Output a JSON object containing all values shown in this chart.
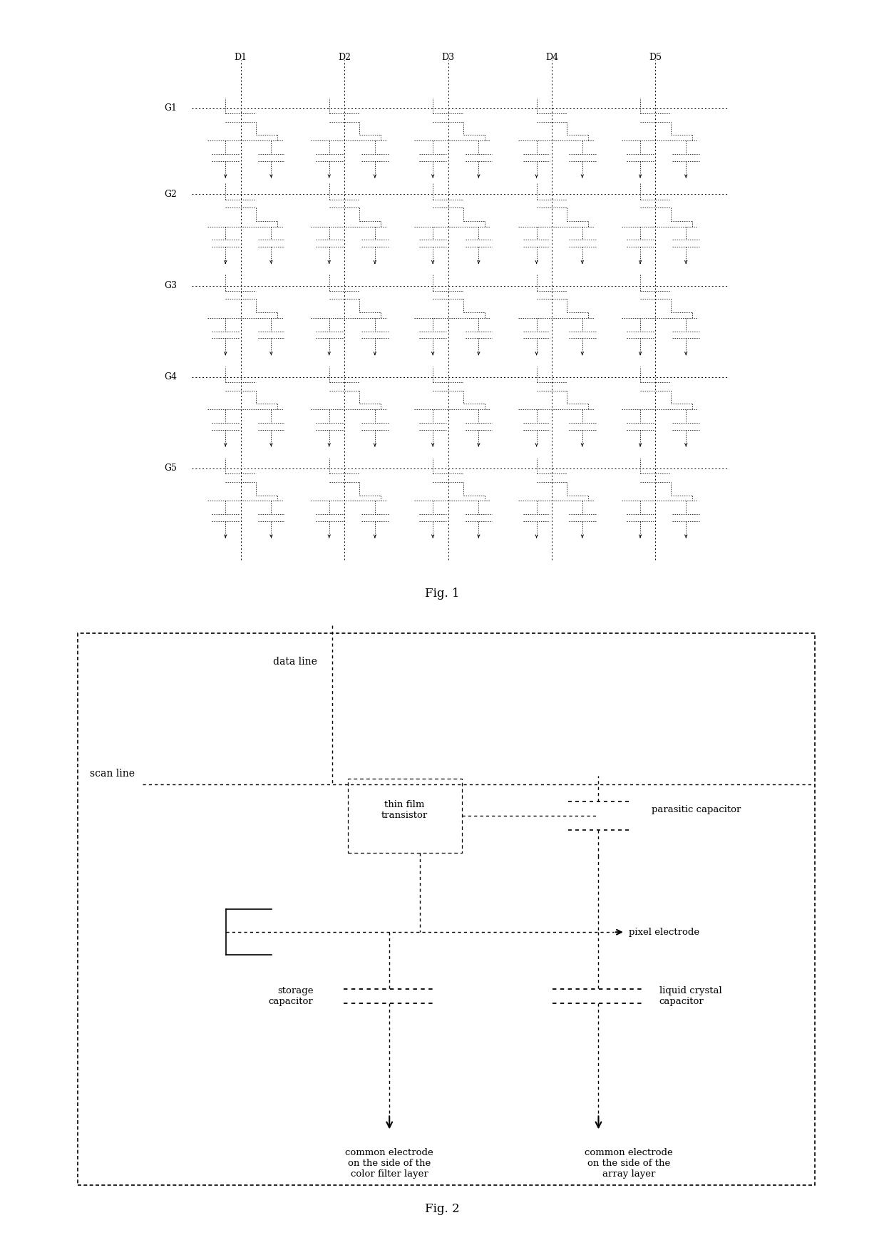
{
  "fig1_title": "Fig. 1",
  "fig2_title": "Fig. 2",
  "background_color": "#ffffff",
  "fig1": {
    "col_labels": [
      "D1",
      "D2",
      "D3",
      "D4",
      "D5"
    ],
    "row_labels": [
      "G1",
      "G2",
      "G3",
      "G4",
      "G5"
    ]
  },
  "fig2": {
    "data_line_label": "data line",
    "scan_line_label": "scan line",
    "tft_label": "thin film\ntransistor",
    "parasitic_label": "parasitic capacitor",
    "pixel_label": "pixel electrode",
    "storage_label": "storage\ncapacitor",
    "lc_label": "liquid crystal\ncapacitor",
    "common_cf_label": "common electrode\non the side of the\ncolor filter layer",
    "common_arr_label": "common electrode\non the side of the\narray layer"
  }
}
